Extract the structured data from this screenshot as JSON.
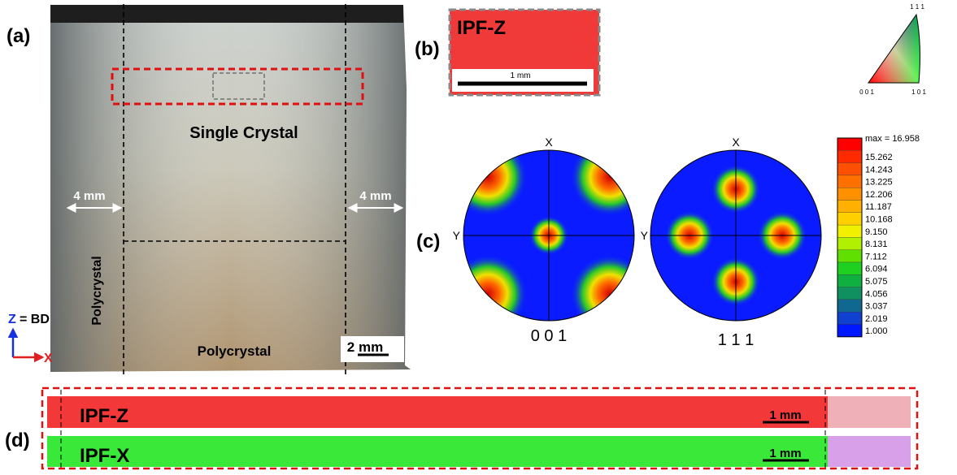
{
  "panels": {
    "a": {
      "label": "(a)",
      "single_crystal": "Single Crystal",
      "width_left": "4 mm",
      "width_right": "4 mm",
      "polycrystal_side": "Polycrystal",
      "polycrystal_bottom": "Polycrystal",
      "scale_bar": "2 mm",
      "axis_z": "Z",
      "axis_z_suffix": "= BD",
      "axis_x": "X"
    },
    "b": {
      "label": "(b)",
      "map_title": "IPF-Z",
      "scale_bar": "1 mm",
      "key_top": "1 1 1",
      "key_left": "0 0 1",
      "key_right": "1 0 1"
    },
    "c": {
      "label": "(c)",
      "pole_figures": [
        {
          "title": "0 0 1",
          "x_axis": "X",
          "y_axis": "Y"
        },
        {
          "title": "1 1 1",
          "x_axis": "X",
          "y_axis": "Y"
        }
      ],
      "colorbar": [
        "max = 16.958",
        "15.262",
        "14.243",
        "13.225",
        "12.206",
        "11.187",
        "10.168",
        "9.150",
        "8.131",
        "7.112",
        "6.094",
        "5.075",
        "4.056",
        "3.037",
        "2.019",
        "1.000"
      ]
    },
    "d": {
      "label": "(d)",
      "maps": [
        {
          "title": "IPF-Z",
          "scale_bar": "1 mm"
        },
        {
          "title": "IPF-X",
          "scale_bar": "1 mm"
        }
      ]
    }
  }
}
